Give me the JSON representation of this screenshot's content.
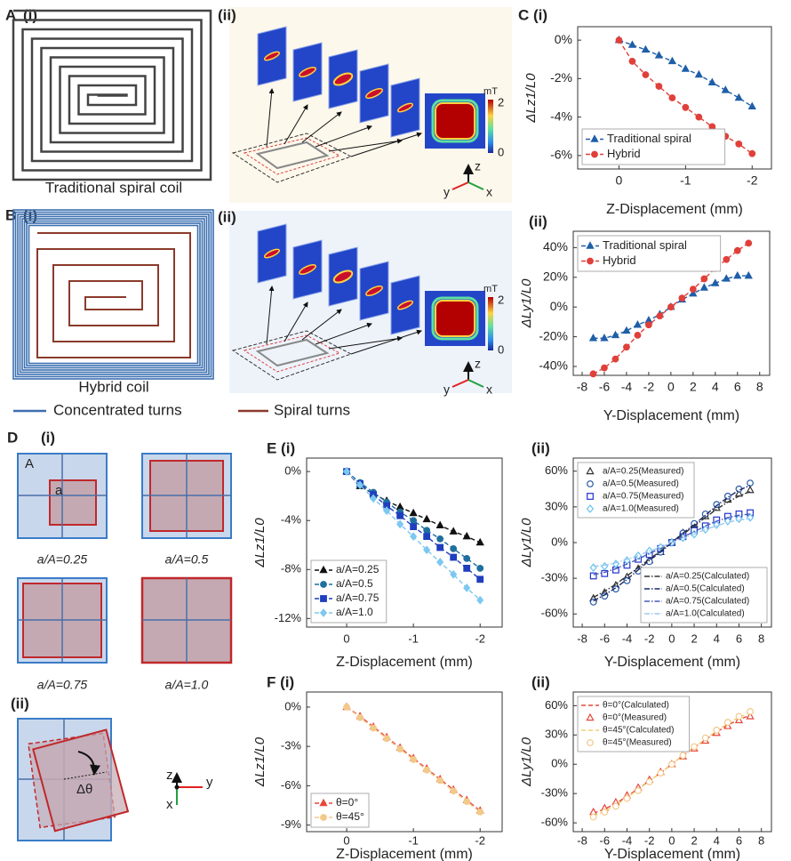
{
  "figure": {
    "A": {
      "label": "A",
      "sub1": "(i)",
      "sub2": "(ii)",
      "caption": "Traditional spiral coil",
      "unit": "mT",
      "cbar_max": 2,
      "cbar_min": 0,
      "axes": [
        "z",
        "y",
        "x"
      ]
    },
    "B": {
      "label": "B",
      "sub1": "(i)",
      "sub2": "(ii)",
      "caption": "Hybrid coil",
      "unit": "mT",
      "cbar_max": 2,
      "cbar_min": 0,
      "axes": [
        "z",
        "y",
        "x"
      ]
    },
    "legend": [
      "Concentrated turns",
      "Spiral turns"
    ],
    "D": {
      "label": "D",
      "sub1": "(i)",
      "big": "A",
      "small": "a",
      "ratios": [
        "a/A=0.25",
        "a/A=0.5",
        "a/A=0.75",
        "a/A=1.0"
      ],
      "sub2": "(ii)",
      "angle": "Δθ",
      "axes": [
        "z",
        "x",
        "y"
      ]
    }
  },
  "chart_data": [
    {
      "type": "line",
      "panel": "C (i)",
      "x_label": "Z-Displacement (mm)",
      "y_label": "ΔLz1/L0",
      "x": [
        0,
        -0.2,
        -0.4,
        -0.6,
        -0.8,
        -1,
        -1.2,
        -1.4,
        -1.6,
        -1.8,
        -2
      ],
      "xlim": [
        0.62,
        -2.29
      ],
      "xticks": [
        0,
        -1,
        -2
      ],
      "ylim": [
        -6.7,
        0.7
      ],
      "yticks": [
        {
          "value": 0,
          "label": "0%"
        },
        {
          "value": -2,
          "label": "-2%"
        },
        {
          "value": -4,
          "label": "-4%"
        },
        {
          "value": -6,
          "label": "-6%"
        }
      ],
      "legend": "bottom-left",
      "series": [
        {
          "name": "Traditional spiral",
          "color": "#1f5fa8",
          "marker": "triangle",
          "filled": true,
          "line": "dashed",
          "values": [
            0,
            -0.25,
            -0.5,
            -0.8,
            -1.1,
            -1.5,
            -1.8,
            -2.2,
            -2.6,
            -3.0,
            -3.45
          ]
        },
        {
          "name": "Hybrid",
          "color": "#e0403a",
          "marker": "circle",
          "filled": true,
          "line": "dashed",
          "values": [
            0,
            -1.1,
            -1.8,
            -2.4,
            -3.0,
            -3.5,
            -4.0,
            -4.5,
            -5.0,
            -5.4,
            -5.9
          ]
        }
      ]
    },
    {
      "type": "line",
      "panel": "(ii)",
      "x_label": "Y-Displacement (mm)",
      "y_label": "ΔLy1/L0",
      "x": [
        -7,
        -6,
        -5,
        -4,
        -3,
        -2,
        -1,
        0,
        1,
        2,
        3,
        4,
        5,
        6,
        7
      ],
      "xlim": [
        -8.8,
        8.9
      ],
      "xticks": [
        -8,
        -6,
        -4,
        -2,
        0,
        2,
        4,
        6,
        8
      ],
      "ylim": [
        -46,
        51
      ],
      "yticks": [
        {
          "value": -40,
          "label": "-40%"
        },
        {
          "value": -20,
          "label": "-20%"
        },
        {
          "value": 0,
          "label": "0%"
        },
        {
          "value": 20,
          "label": "20%"
        },
        {
          "value": 40,
          "label": "40%"
        }
      ],
      "legend": "top-left",
      "series": [
        {
          "name": "Traditional spiral",
          "color": "#1f5fa8",
          "marker": "triangle",
          "filled": true,
          "line": "dashed",
          "values": [
            -21,
            -21,
            -19,
            -16,
            -12,
            -9,
            -5,
            0,
            5,
            9,
            13,
            16,
            19,
            21,
            21
          ]
        },
        {
          "name": "Hybrid",
          "color": "#e0403a",
          "marker": "circle",
          "filled": true,
          "line": "dashed",
          "values": [
            -45,
            -41,
            -35,
            -27,
            -19,
            -12,
            -6,
            0,
            6,
            12,
            19,
            26,
            32,
            38,
            43
          ]
        }
      ]
    },
    {
      "type": "line",
      "panel": "E (i)",
      "x_label": "Z-Displacement (mm)",
      "y_label": "ΔLz1/L0",
      "x": [
        0,
        -0.2,
        -0.4,
        -0.6,
        -0.8,
        -1,
        -1.2,
        -1.4,
        -1.6,
        -1.8,
        -2
      ],
      "xlim": [
        0.6,
        -2.33
      ],
      "xticks": [
        0,
        -1,
        -2
      ],
      "ylim": [
        -12.7,
        1.1
      ],
      "yticks": [
        {
          "value": 0,
          "label": "0%"
        },
        {
          "value": -4,
          "label": "-4%"
        },
        {
          "value": -8,
          "label": "-8%"
        },
        {
          "value": -12,
          "label": "-12%"
        }
      ],
      "legend": "bottom-left",
      "series": [
        {
          "name": "a/A=0.25",
          "color": "#111111",
          "marker": "triangle",
          "filled": true,
          "line": "dashed",
          "values": [
            0,
            -1.2,
            -1.8,
            -2.4,
            -2.9,
            -3.4,
            -3.9,
            -4.4,
            -4.9,
            -5.3,
            -5.8
          ]
        },
        {
          "name": "a/A=0.5",
          "color": "#1f6f9f",
          "marker": "circle",
          "filled": true,
          "line": "dashed",
          "values": [
            0,
            -0.9,
            -1.7,
            -2.5,
            -3.3,
            -4.0,
            -4.8,
            -5.5,
            -6.3,
            -7.1,
            -7.9
          ]
        },
        {
          "name": "a/A=0.75",
          "color": "#1f3fbf",
          "marker": "square",
          "filled": true,
          "line": "dashed",
          "values": [
            0,
            -1.0,
            -1.9,
            -2.8,
            -3.6,
            -4.5,
            -5.3,
            -6.2,
            -7.0,
            -7.9,
            -8.8
          ]
        },
        {
          "name": "a/A=1.0",
          "color": "#7cc8f0",
          "marker": "diamond",
          "filled": true,
          "line": "dashed",
          "values": [
            0,
            -1.1,
            -2.2,
            -3.2,
            -4.3,
            -5.3,
            -6.4,
            -7.4,
            -8.4,
            -9.5,
            -10.5
          ]
        }
      ]
    },
    {
      "type": "line",
      "panel": "(ii)",
      "x_label": "Y-Displacement (mm)",
      "y_label": "ΔLy1/L0",
      "x": [
        -7,
        -6,
        -5,
        -4,
        -3,
        -2,
        -1,
        0,
        1,
        2,
        3,
        4,
        5,
        6,
        7
      ],
      "xlim": [
        -8.8,
        8.9
      ],
      "xticks": [
        -8,
        -6,
        -4,
        -2,
        0,
        2,
        4,
        6,
        8
      ],
      "ylim": [
        -71,
        71
      ],
      "yticks": [
        {
          "value": -60,
          "label": "-60%"
        },
        {
          "value": -30,
          "label": "-30%"
        },
        {
          "value": 0,
          "label": "0%"
        },
        {
          "value": 30,
          "label": "30%"
        },
        {
          "value": 60,
          "label": "60%"
        }
      ],
      "legend": "split",
      "series": [
        {
          "name": "a/A=0.25(Measured)",
          "color": "#333333",
          "marker": "triangle",
          "filled": false,
          "line": "none",
          "values": [
            -47,
            -42,
            -36,
            -29,
            -22,
            -15,
            -8,
            0,
            8,
            15,
            22,
            29,
            36,
            41,
            44
          ]
        },
        {
          "name": "a/A=0.5(Measured)",
          "color": "#2a5aa8",
          "marker": "circle",
          "filled": false,
          "line": "none",
          "values": [
            -50,
            -45,
            -39,
            -32,
            -24,
            -16,
            -8,
            0,
            8,
            16,
            24,
            32,
            39,
            45,
            50
          ]
        },
        {
          "name": "a/A=0.75(Measured)",
          "color": "#2233cc",
          "marker": "square",
          "filled": false,
          "line": "none",
          "values": [
            -28,
            -26,
            -23,
            -19,
            -14,
            -10,
            -5,
            0,
            5,
            10,
            14,
            19,
            22,
            24,
            25
          ]
        },
        {
          "name": "a/A=1.0(Measured)",
          "color": "#66c2ee",
          "marker": "diamond",
          "filled": false,
          "line": "none",
          "values": [
            -21,
            -20,
            -18,
            -15,
            -11,
            -7,
            -4,
            0,
            4,
            7,
            11,
            15,
            18,
            20,
            21
          ]
        },
        {
          "name": "a/A=0.25(Calculated)",
          "color": "#333333",
          "line": "dashdot",
          "values": [
            -46,
            -41,
            -35,
            -28,
            -21,
            -14,
            -7,
            0,
            7,
            14,
            21,
            28,
            34,
            39,
            43
          ]
        },
        {
          "name": "a/A=0.5(Calculated)",
          "color": "#1a2a6a",
          "line": "dashdot",
          "values": [
            -49,
            -44,
            -38,
            -31,
            -23,
            -15,
            -8,
            0,
            8,
            15,
            23,
            31,
            38,
            44,
            48
          ]
        },
        {
          "name": "a/A=0.75(Calculated)",
          "color": "#4a5ab8",
          "line": "dashdot",
          "values": [
            -27,
            -25,
            -22,
            -18,
            -14,
            -9,
            -5,
            0,
            5,
            9,
            14,
            18,
            21,
            23,
            24
          ]
        },
        {
          "name": "a/A=1.0(Calculated)",
          "color": "#9ec8ee",
          "line": "dashdot",
          "values": [
            -20,
            -19,
            -17,
            -14,
            -11,
            -7,
            -4,
            0,
            4,
            7,
            11,
            14,
            17,
            19,
            20
          ]
        }
      ]
    },
    {
      "type": "line",
      "panel": "F (i)",
      "x_label": "Z-Displacement (mm)",
      "y_label": "ΔLz1/L0",
      "x": [
        0,
        -0.2,
        -0.4,
        -0.6,
        -0.8,
        -1,
        -1.2,
        -1.4,
        -1.6,
        -1.8,
        -2
      ],
      "xlim": [
        0.6,
        -2.33
      ],
      "xticks": [
        0,
        -1,
        -2
      ],
      "ylim": [
        -9.5,
        1.15
      ],
      "yticks": [
        {
          "value": 0,
          "label": "0%"
        },
        {
          "value": -3,
          "label": "-3%"
        },
        {
          "value": -6,
          "label": "-6%"
        },
        {
          "value": -9,
          "label": "-9%"
        }
      ],
      "legend": "bottom-left",
      "series": [
        {
          "name": "θ=0°",
          "color": "#e8463a",
          "marker": "triangle",
          "filled": true,
          "line": "dashed",
          "values": [
            0,
            -0.7,
            -1.5,
            -2.3,
            -3.1,
            -3.9,
            -4.7,
            -5.5,
            -6.3,
            -7.1,
            -7.9
          ]
        },
        {
          "name": "θ=45°",
          "color": "#f2c98a",
          "marker": "circle",
          "filled": true,
          "line": "dashed",
          "values": [
            0,
            -0.8,
            -1.6,
            -2.4,
            -3.2,
            -4.0,
            -4.8,
            -5.6,
            -6.4,
            -7.2,
            -8.0
          ]
        }
      ]
    },
    {
      "type": "line",
      "panel": "(ii)",
      "x_label": "Y-Displacement (mm)",
      "y_label": "ΔLy1/L0",
      "x": [
        -7,
        -6,
        -5,
        -4,
        -3,
        -2,
        -1,
        0,
        1,
        2,
        3,
        4,
        5,
        6,
        7
      ],
      "xlim": [
        -8.8,
        8.9
      ],
      "xticks": [
        -8,
        -6,
        -4,
        -2,
        0,
        2,
        4,
        6,
        8
      ],
      "ylim": [
        -69,
        74
      ],
      "yticks": [
        {
          "value": -60,
          "label": "-60%"
        },
        {
          "value": -30,
          "label": "-30%"
        },
        {
          "value": 0,
          "label": "0%"
        },
        {
          "value": 30,
          "label": "30%"
        },
        {
          "value": 60,
          "label": "60%"
        }
      ],
      "legend": "top-left",
      "series": [
        {
          "name": "θ=0°(Calculated)",
          "color": "#e8463a",
          "line": "dashed",
          "values": [
            -50,
            -46,
            -40,
            -33,
            -25,
            -17,
            -9,
            0,
            9,
            17,
            25,
            33,
            40,
            46,
            50
          ]
        },
        {
          "name": "θ=0°(Measured)",
          "color": "#e8463a",
          "marker": "triangle",
          "filled": false,
          "line": "none",
          "values": [
            -49,
            -45,
            -39,
            -32,
            -24,
            -16,
            -8,
            0,
            8,
            16,
            24,
            32,
            39,
            45,
            49
          ]
        },
        {
          "name": "θ=45°(Calculated)",
          "color": "#f2d070",
          "line": "dashed",
          "values": [
            -53,
            -48,
            -42,
            -34,
            -26,
            -17,
            -9,
            0,
            9,
            17,
            26,
            34,
            42,
            48,
            53
          ]
        },
        {
          "name": "θ=45°(Measured)",
          "color": "#f2c98a",
          "marker": "circle",
          "filled": false,
          "line": "none",
          "values": [
            -54,
            -49,
            -43,
            -35,
            -27,
            -18,
            -9,
            0,
            9,
            18,
            27,
            35,
            43,
            49,
            54
          ]
        }
      ]
    }
  ]
}
